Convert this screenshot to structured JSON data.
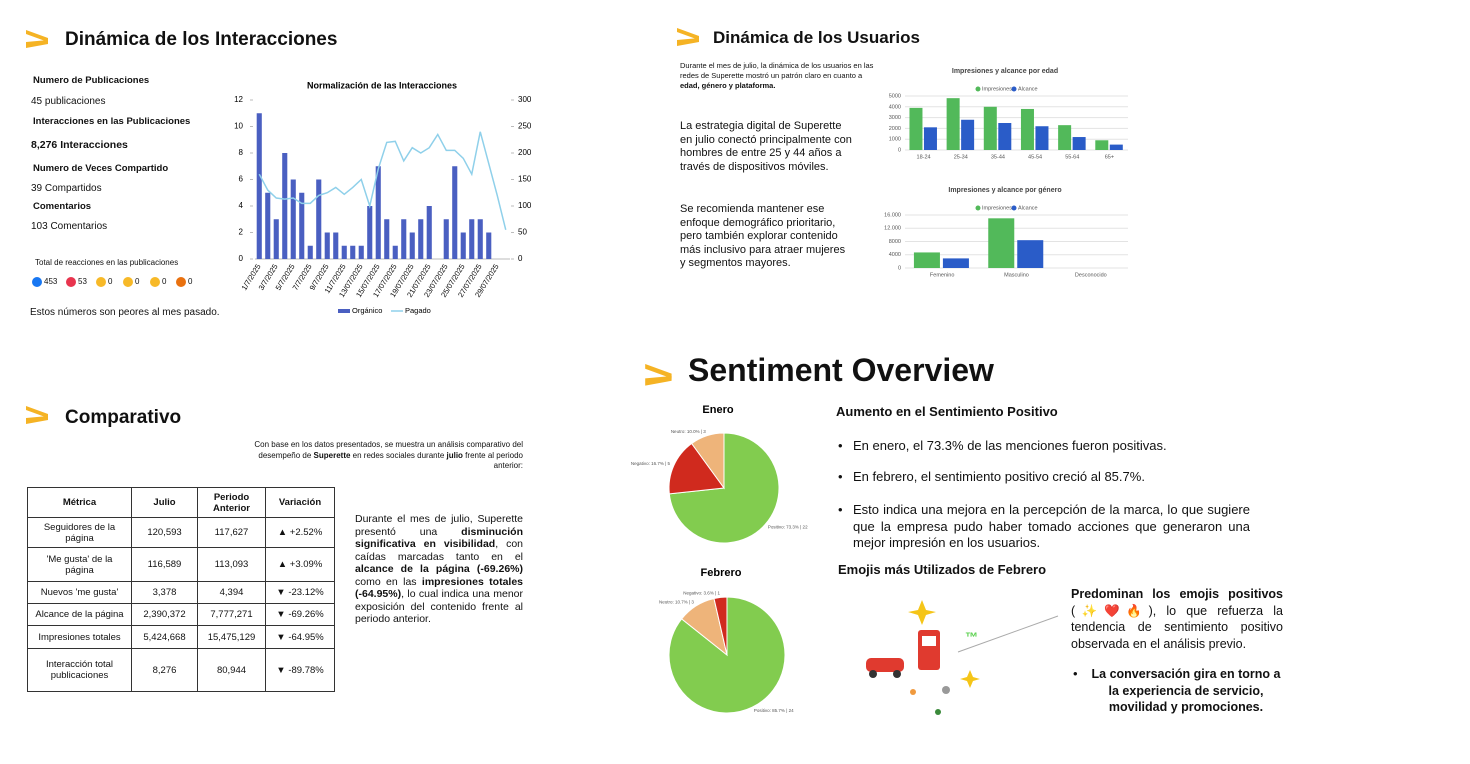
{
  "interacciones": {
    "title": "Dinámica de los Interacciones",
    "stats": [
      {
        "label": "Numero de Publicaciones",
        "value": "45 publicaciones"
      },
      {
        "label": "Interacciones en las Publicaciones",
        "value": "8,276 Interacciones"
      },
      {
        "label": "Numero de Veces Compartido",
        "value": "39 Compartidos"
      },
      {
        "label": "Comentarios",
        "value": "103 Comentarios"
      }
    ],
    "reactions_title": "Total de reacciones en las publicaciones",
    "reactions": [
      453,
      53,
      0,
      0,
      0,
      0
    ],
    "note": "Estos números son peores al mes pasado."
  },
  "usuarios": {
    "title": "Dinámica de los Usuarios",
    "intro": [
      {
        "text": "Durante el mes de julio, la dinámica de los usuarios en las redes de Superette mostró un patrón claro en cuanto a "
      },
      {
        "text": "edad, género y plataforma.",
        "bold": true
      }
    ],
    "paragraphs": [
      "La estrategia digital de Superette en julio conectó principalmente con hombres de entre 25 y 44 años a través de dispositivos móviles.",
      "Se recomienda mantener ese enfoque demográfico prioritario, pero también explorar contenido más inclusivo para atraer mujeres y segmentos mayores."
    ]
  },
  "comparativo": {
    "title": "Comparativo",
    "intro": [
      {
        "text": "Con base en los datos presentados, se muestra un análisis comparativo del desempeño de "
      },
      {
        "text": "Superette",
        "bold": true
      },
      {
        "text": " en redes sociales durante "
      },
      {
        "text": "julio",
        "bold": true
      },
      {
        "text": " frente al periodo anterior:"
      }
    ],
    "table": {
      "header": [
        "Métrica",
        "Julio",
        "Periodo Anterior",
        "Variación"
      ],
      "rows": [
        [
          "Seguidores de la página",
          "120,593",
          "117,627",
          "▲ +2.52%"
        ],
        [
          "'Me gusta' de la página",
          "116,589",
          "113,093",
          "▲ +3.09%"
        ],
        [
          "Nuevos 'me gusta'",
          "3,378",
          "4,394",
          "▼ -23.12%"
        ],
        [
          "Alcance de la página",
          "2,390,372",
          "7,777,271",
          "▼ -69.26%"
        ],
        [
          "Impresiones totales",
          "5,424,668",
          "15,475,129",
          "▼ -64.95%"
        ],
        [
          "Interacción total publicaciones",
          "8,276",
          "80,944",
          "▼ -89.78%"
        ]
      ]
    },
    "paragraph": [
      {
        "text": "Durante el mes de julio, Superette presentó una "
      },
      {
        "text": "disminución significativa en visibilidad",
        "bold": true
      },
      {
        "text": ", con caídas marcadas tanto en el "
      },
      {
        "text": "alcance de la página (-69.26%)",
        "bold": true
      },
      {
        "text": " como en las "
      },
      {
        "text": "impresiones totales (-64.95%)",
        "bold": true
      },
      {
        "text": ", lo cual indica una menor exposición del contenido frente al periodo anterior."
      }
    ]
  },
  "sentiment": {
    "title": "Sentiment Overview",
    "heading": "Aumento en el Sentimiento Positivo",
    "bullets": [
      "En enero, el 73.3% de las menciones fueron positivas.",
      "En febrero, el sentimiento positivo creció al 85.7%.",
      "Esto indica una mejora en la percepción de la marca, lo que sugiere que la empresa pudo haber tomado acciones que generaron una mejor impresión en los usuarios."
    ],
    "emoji_heading": "Emojis más Utilizados de Febrero",
    "emoji_text": [
      {
        "text": "Predominan los emojis positivos",
        "bold": true
      },
      {
        "text": " (✨❤️🔥), lo que refuerza la tendencia de sentimiento positivo observada en el análisis previo."
      }
    ],
    "emoji_bullet": "La conversación gira en torno a la experiencia de servicio, movilidad y promociones."
  },
  "chart_data": [
    {
      "type": "combo",
      "title": "Normalización de las Interacciones",
      "categories": [
        "1/7/2025",
        null,
        "3/7/2025",
        null,
        "5/7/2025",
        null,
        "7/7/2025",
        null,
        "9/7/2025",
        null,
        "11/7/2025",
        null,
        "13/07/2025",
        null,
        "15/07/2025",
        null,
        "17/07/2025",
        null,
        "19/07/2025",
        null,
        "21/07/2025",
        null,
        "23/07/2025",
        null,
        "25/07/2025",
        null,
        "27/07/2025",
        null,
        "29/07/2025",
        null
      ],
      "series": [
        {
          "name": "Orgánico",
          "type": "bar",
          "color": "#4a5fc1",
          "values": [
            11,
            5,
            3,
            8,
            6,
            5,
            1,
            6,
            2,
            2,
            1,
            1,
            1,
            4,
            7,
            3,
            1,
            3,
            2,
            3,
            4,
            0,
            3,
            7,
            2,
            3,
            3,
            2,
            0,
            0
          ]
        },
        {
          "name": "Pagado",
          "type": "line",
          "axis": "y2",
          "color": "#8fd0ea",
          "values": [
            160,
            130,
            115,
            113,
            115,
            105,
            105,
            120,
            125,
            135,
            122,
            135,
            150,
            100,
            170,
            220,
            222,
            185,
            210,
            200,
            210,
            235,
            205,
            205,
            190,
            160,
            240,
            180,
            120,
            55
          ]
        }
      ],
      "ylim": [
        0,
        12
      ],
      "yticks": [
        0,
        2,
        4,
        6,
        8,
        10,
        12
      ],
      "y2lim": [
        0,
        300
      ],
      "y2ticks": [
        0,
        50,
        100,
        150,
        200,
        250,
        300
      ],
      "legend": "bottom"
    },
    {
      "type": "grouped_bar",
      "title": "Impresiones y alcance por edad",
      "categories": [
        "18-24",
        "25-34",
        "35-44",
        "45-54",
        "55-64",
        "65+"
      ],
      "series": [
        {
          "name": "Impresiones",
          "color": "#52b95a",
          "values": [
            3900,
            4800,
            4000,
            3800,
            2300,
            900
          ]
        },
        {
          "name": "Alcance",
          "color": "#2a5cc8",
          "values": [
            2100,
            2800,
            2500,
            2200,
            1200,
            500
          ]
        }
      ],
      "ylim": [
        0,
        5000
      ],
      "yticks": [
        0,
        1000,
        2000,
        3000,
        4000,
        5000
      ],
      "grid": true,
      "legend": "top"
    },
    {
      "type": "grouped_bar",
      "title": "Impresiones y alcance por género",
      "categories": [
        "Femenino",
        "Masculino",
        "Desconocido"
      ],
      "series": [
        {
          "name": "Impresiones",
          "color": "#52b95a",
          "values": [
            4700,
            15000,
            0
          ]
        },
        {
          "name": "Alcance",
          "color": "#2a5cc8",
          "values": [
            2900,
            8400,
            0
          ]
        }
      ],
      "ylim": [
        0,
        16000
      ],
      "yticks": [
        0,
        4000,
        8000,
        {
          "value": 12000,
          "label": "12.000"
        },
        {
          "value": 16000,
          "label": "16.000"
        }
      ],
      "grid": true,
      "legend": "top"
    },
    {
      "type": "pie",
      "title": "Enero",
      "values": [
        73.3,
        16.7,
        10.0
      ],
      "value_labels": [
        "Positivo: 73.3% | 22",
        "Negativo: 16.7% | 5",
        "Neutro: 10.0% | 3"
      ],
      "colors": [
        "#82cc4f",
        "#d02a1e",
        "#eeb47a"
      ]
    },
    {
      "type": "pie",
      "title": "Febrero",
      "values": [
        85.7,
        10.7,
        3.6
      ],
      "value_labels": [
        "Positivo: 85.7% | 24",
        "Neutro: 10.7% | 3",
        "Negativo: 3.6% | 1"
      ],
      "colors": [
        "#82cc4f",
        "#eeb47a",
        "#d02a1e"
      ]
    }
  ]
}
